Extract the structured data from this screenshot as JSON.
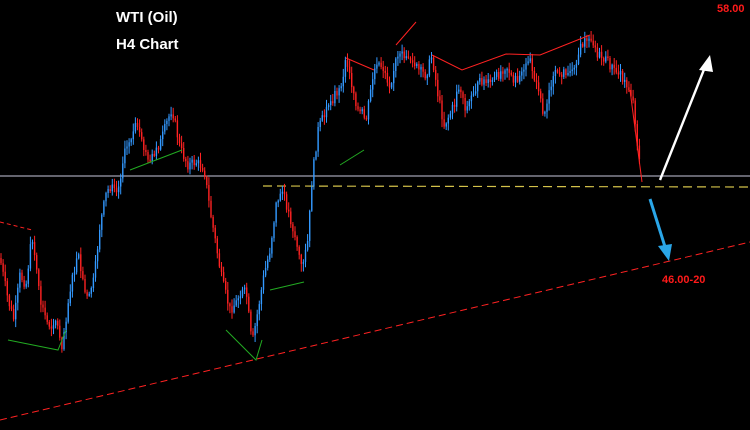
{
  "chart_data": {
    "type": "candlestick",
    "title": "WTI (Oil)",
    "subtitle": "H4 Chart",
    "grid": false,
    "background": "#000000",
    "colors": {
      "up_candle": "#3399ff",
      "down_candle": "#ff2222",
      "channel_line": "#ff2222",
      "level_line": "#c8c8dc",
      "support_dashed": "#d4c24a",
      "zigzag_green": "#22aa22",
      "bull_arrow": "#ffffff",
      "bear_arrow": "#2aa6e8"
    },
    "annotations": {
      "upper_target": "58.00",
      "lower_target": "46.00-20"
    },
    "scenarios": [
      {
        "name": "bullish",
        "direction": "up",
        "target": "58.00"
      },
      {
        "name": "bearish",
        "direction": "down",
        "target": "46.00-20"
      }
    ]
  }
}
